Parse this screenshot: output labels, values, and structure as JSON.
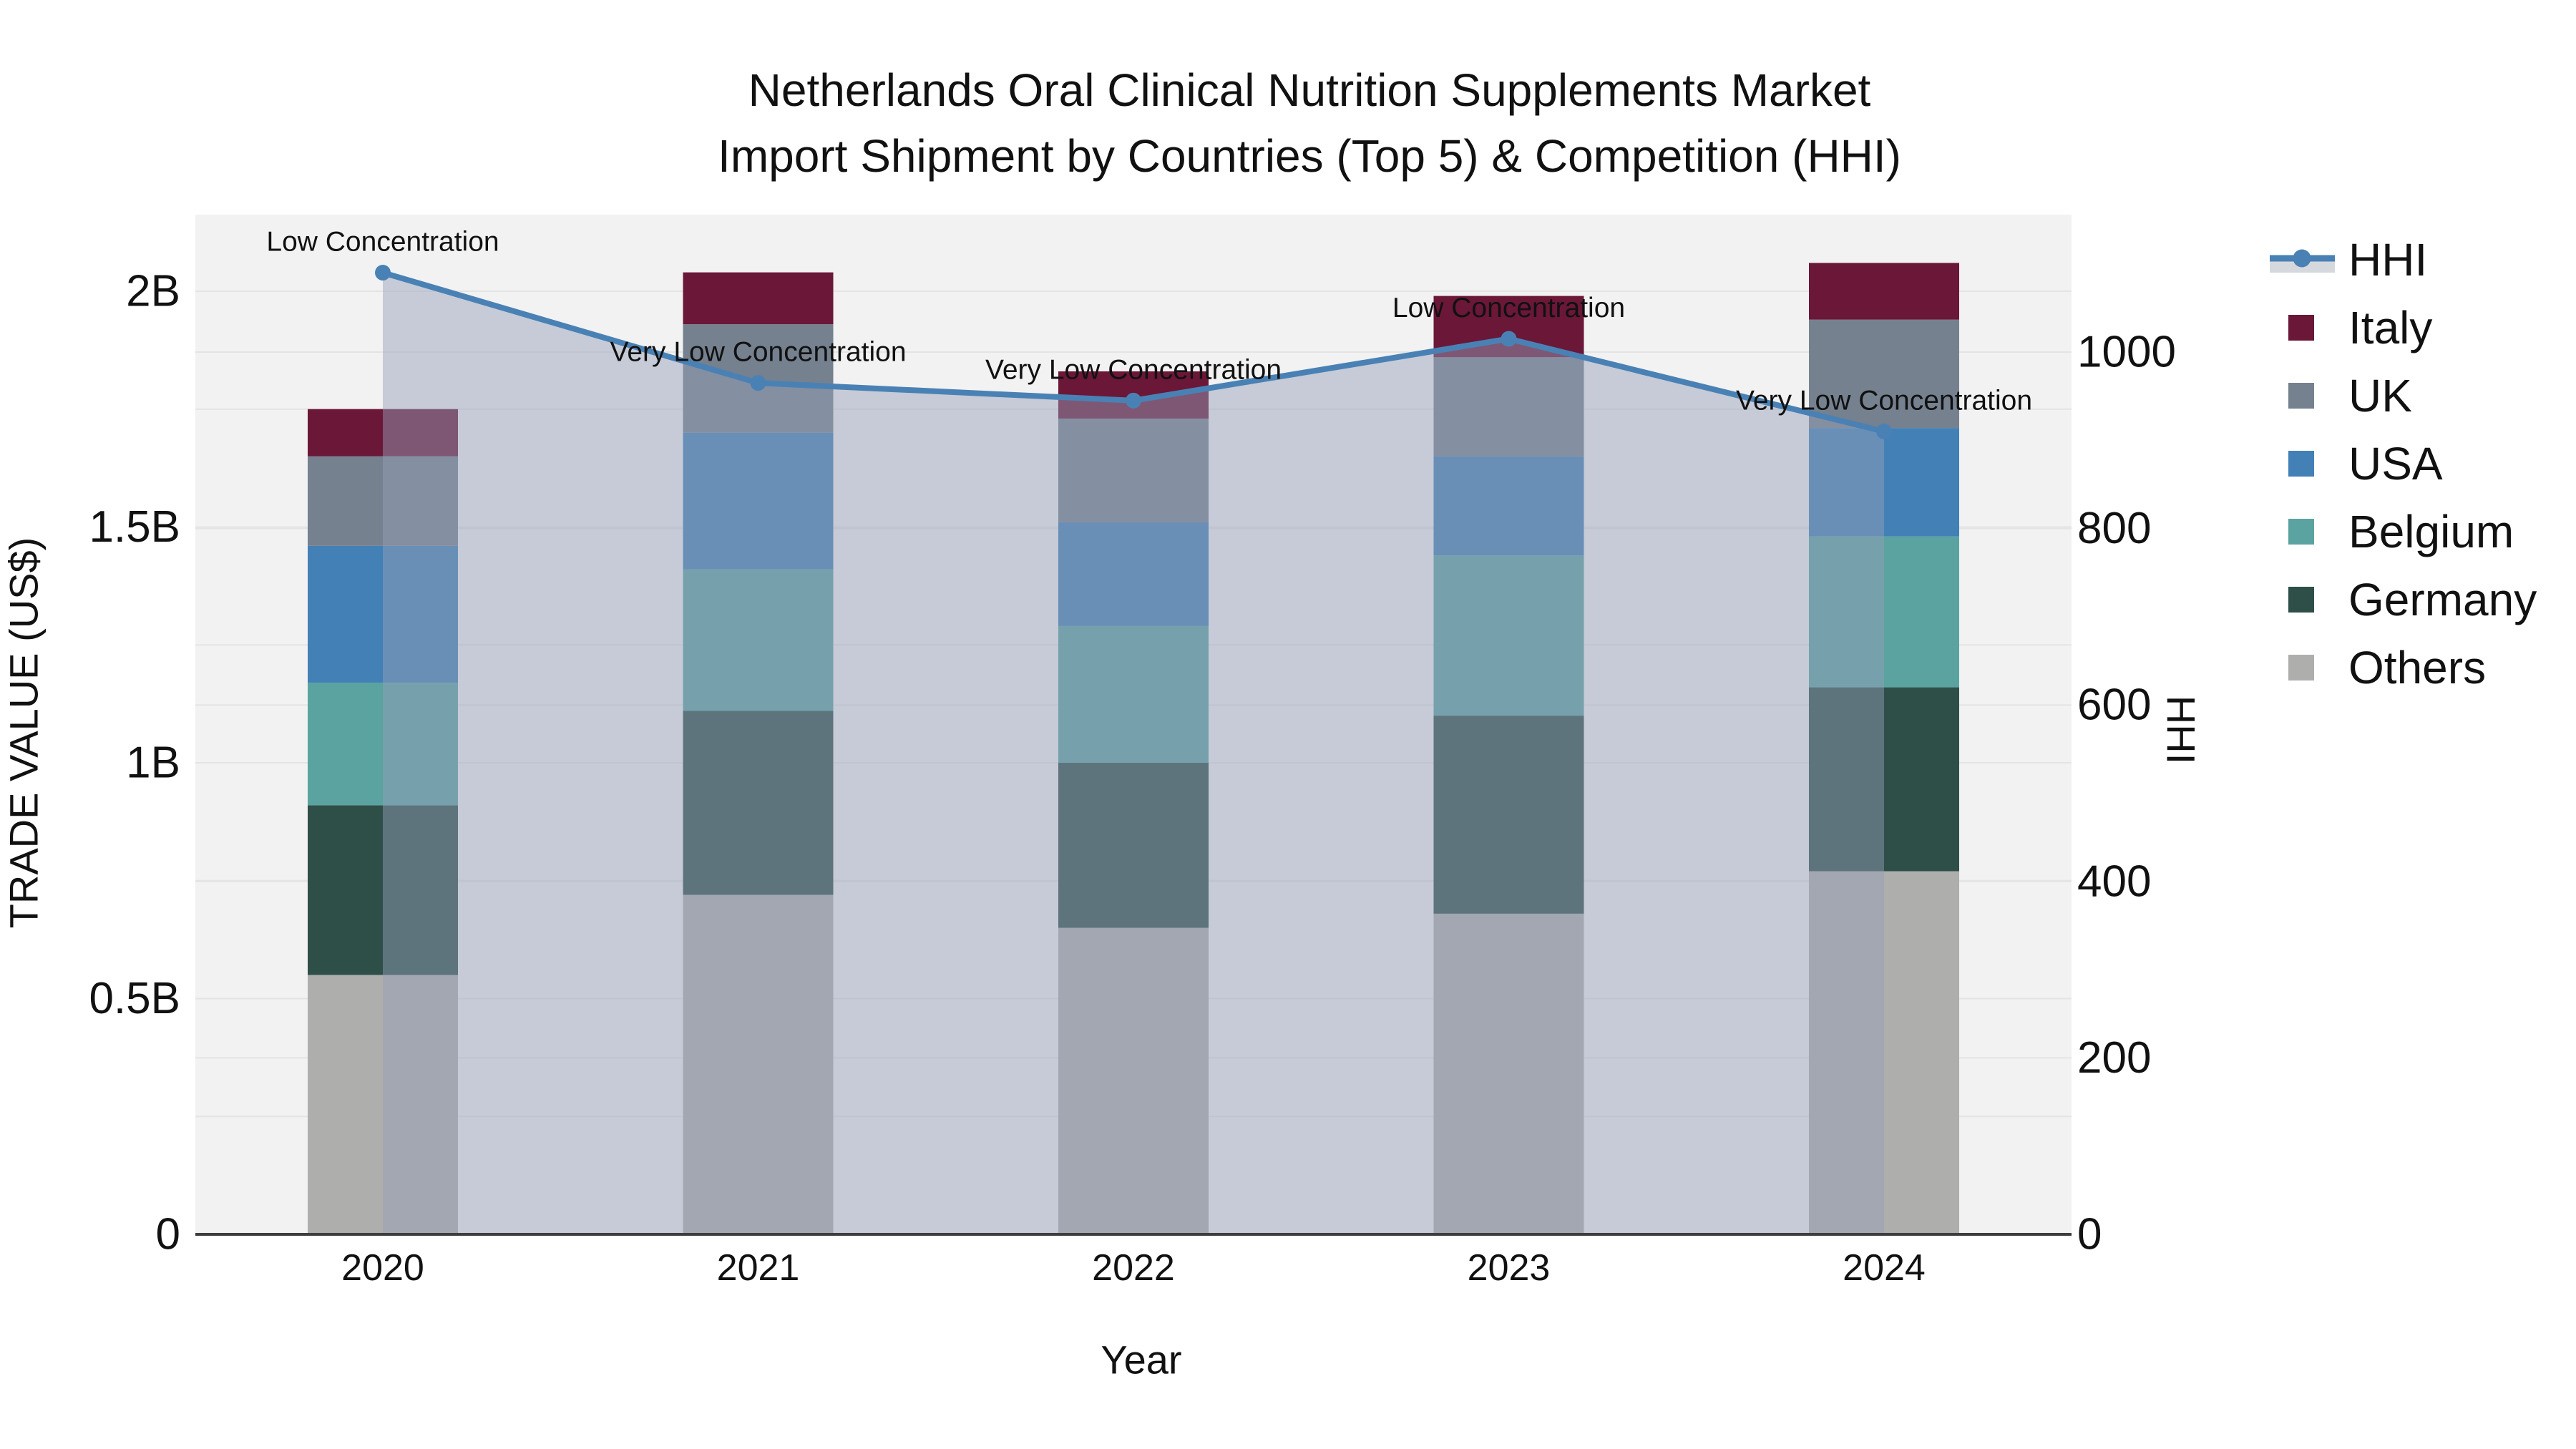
{
  "title": {
    "line1": "Netherlands Oral Clinical Nutrition Supplements Market",
    "line2": "Import Shipment by Countries (Top 5) & Competition (HHI)"
  },
  "chart_data": {
    "type": "bar+line",
    "subtype": "stacked bars (trade value, left axis) with HHI line + translucent area fill (right axis)",
    "categories": [
      "2020",
      "2021",
      "2022",
      "2023",
      "2024"
    ],
    "value_unit": "billions US$",
    "series": [
      {
        "name": "Others",
        "color": "#aeaeac",
        "values": [
          0.55,
          0.72,
          0.65,
          0.68,
          0.77
        ]
      },
      {
        "name": "Germany",
        "color": "#2e4f48",
        "values": [
          0.36,
          0.39,
          0.35,
          0.42,
          0.39
        ]
      },
      {
        "name": "Belgium",
        "color": "#5ba3a0",
        "values": [
          0.26,
          0.3,
          0.29,
          0.34,
          0.32
        ]
      },
      {
        "name": "USA",
        "color": "#4380b6",
        "values": [
          0.29,
          0.29,
          0.22,
          0.21,
          0.23
        ]
      },
      {
        "name": "UK",
        "color": "#75818f",
        "values": [
          0.19,
          0.23,
          0.22,
          0.21,
          0.23
        ]
      },
      {
        "name": "Italy",
        "color": "#6b1737",
        "values": [
          0.1,
          0.11,
          0.1,
          0.13,
          0.12
        ]
      }
    ],
    "stack_totals": [
      1.75,
      2.04,
      1.83,
      1.99,
      2.06
    ],
    "line_series": {
      "name": "HHI",
      "color": "#4a81b5",
      "fill_color": "rgba(148,160,184,0.47)",
      "values": [
        1090,
        965,
        945,
        1015,
        910
      ]
    },
    "annotations": [
      {
        "category": "2020",
        "text": "Low Concentration"
      },
      {
        "category": "2021",
        "text": "Very Low Concentration"
      },
      {
        "category": "2022",
        "text": "Very Low Concentration"
      },
      {
        "category": "2023",
        "text": "Low Concentration"
      },
      {
        "category": "2024",
        "text": "Very Low Concentration"
      }
    ],
    "axes": {
      "left": {
        "title": "TRADE VALUE (US$)",
        "ticks": [
          {
            "value": 0,
            "label": "0"
          },
          {
            "value": 0.5,
            "label": "0.5B"
          },
          {
            "value": 1,
            "label": "1B"
          },
          {
            "value": 1.5,
            "label": "1.5B"
          },
          {
            "value": 2,
            "label": "2B"
          }
        ],
        "minor_grid_step": 0.25,
        "range": [
          0,
          2.16
        ]
      },
      "right": {
        "title": "HHI",
        "ticks": [
          0,
          200,
          400,
          600,
          800,
          1000
        ],
        "grid_step": 200,
        "range": [
          0,
          1156
        ]
      },
      "x": {
        "title": "Year"
      }
    },
    "legend": [
      {
        "label": "HHI",
        "kind": "line",
        "color": "#4a81b5"
      },
      {
        "label": "Italy",
        "kind": "swatch",
        "color": "#6b1737"
      },
      {
        "label": "UK",
        "kind": "swatch",
        "color": "#75818f"
      },
      {
        "label": "USA",
        "kind": "swatch",
        "color": "#4380b6"
      },
      {
        "label": "Belgium",
        "kind": "swatch",
        "color": "#5ba3a0"
      },
      {
        "label": "Germany",
        "kind": "swatch",
        "color": "#2e4f48"
      },
      {
        "label": "Others",
        "kind": "swatch",
        "color": "#aeaeac"
      }
    ],
    "legend_fill_swatch_color": "#d5d9de",
    "grid_color": "#e4e4e4",
    "plot_bg_color": "#f2f2f2",
    "axis_line_color": "#3d3d3d"
  }
}
